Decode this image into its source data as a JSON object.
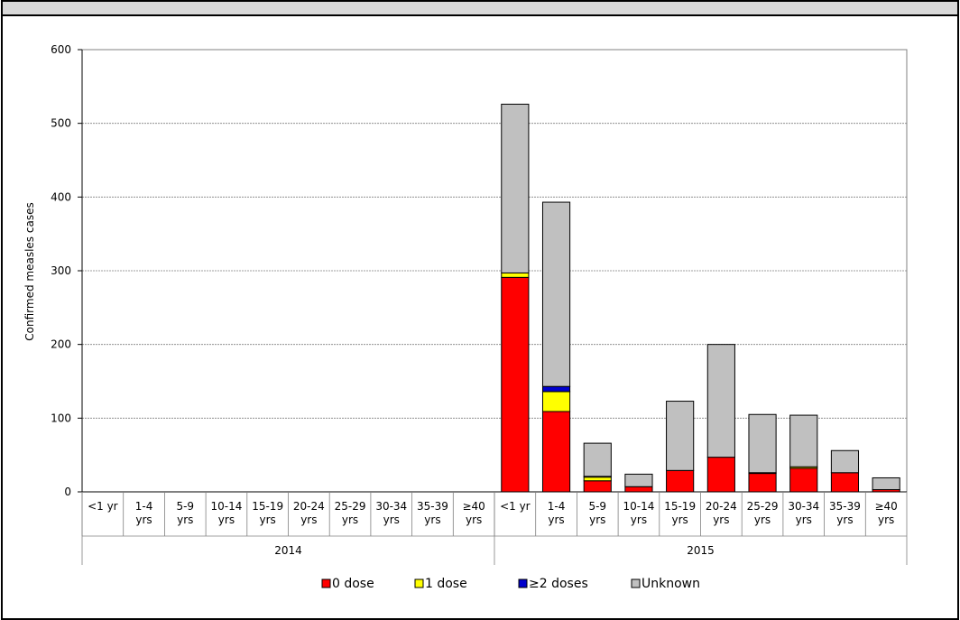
{
  "chart_data": {
    "type": "bar",
    "stacked": true,
    "title": "",
    "ylabel": "Confirmed measles cases",
    "ylim": [
      0,
      600
    ],
    "yticks": [
      0,
      100,
      200,
      300,
      400,
      500,
      600
    ],
    "grid": true,
    "legend_position": "bottom",
    "groups": [
      {
        "label": "2014",
        "categories": [
          "<1 yr",
          "1-4 yrs",
          "5-9 yrs",
          "10-14 yrs",
          "15-19 yrs",
          "20-24 yrs",
          "25-29 yrs",
          "30-34 yrs",
          "35-39 yrs",
          "≥40 yrs"
        ]
      },
      {
        "label": "2015",
        "categories": [
          "<1 yr",
          "1-4 yrs",
          "5-9 yrs",
          "10-14 yrs",
          "15-19 yrs",
          "20-24 yrs",
          "25-29 yrs",
          "30-34 yrs",
          "35-39 yrs",
          "≥40 yrs"
        ]
      }
    ],
    "series": [
      {
        "name": "0 dose",
        "color": "#ff0000",
        "values": [
          0,
          0,
          0,
          0,
          0,
          0,
          0,
          0,
          0,
          0,
          291,
          109,
          15,
          7,
          29,
          47,
          25,
          32,
          26,
          3
        ]
      },
      {
        "name": "1 dose",
        "color": "#ffff00",
        "values": [
          0,
          0,
          0,
          0,
          0,
          0,
          0,
          0,
          0,
          0,
          6,
          27,
          5,
          0,
          0,
          0,
          0,
          2,
          0,
          0
        ]
      },
      {
        "name": "≥2 doses",
        "color": "#0000cc",
        "values": [
          0,
          0,
          0,
          0,
          0,
          0,
          0,
          0,
          0,
          0,
          0,
          7,
          1,
          0,
          0,
          0,
          1,
          0,
          0,
          0
        ]
      },
      {
        "name": "Unknown",
        "color": "#c0c0c0",
        "values": [
          0,
          0,
          0,
          0,
          0,
          0,
          0,
          0,
          0,
          0,
          229,
          250,
          45,
          17,
          94,
          153,
          79,
          70,
          30,
          16
        ]
      }
    ]
  }
}
